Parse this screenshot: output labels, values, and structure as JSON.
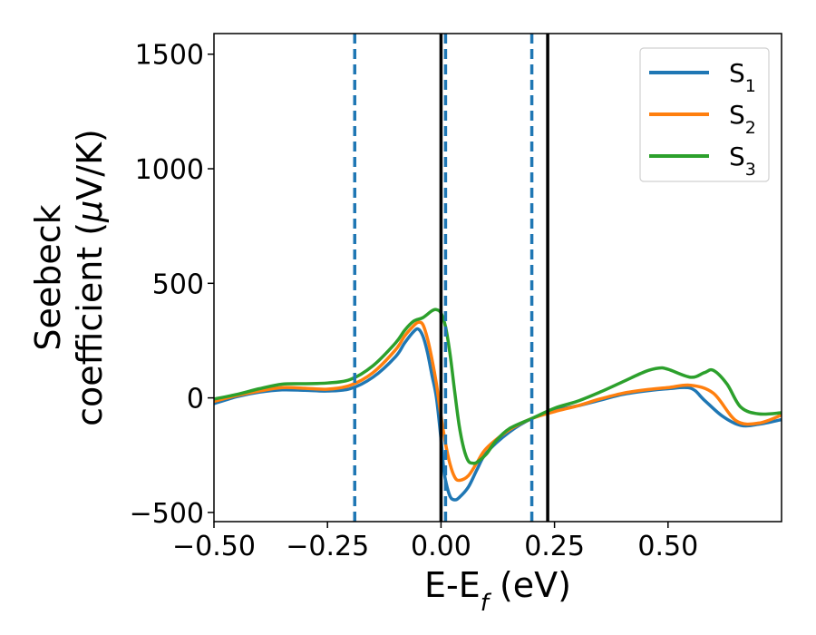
{
  "chart_data": {
    "type": "line",
    "xlabel": "E-E",
    "xlabel_sub": "f",
    "xlabel_unit": " (eV)",
    "ylabel_line1": "Seebeck",
    "ylabel_line2": "coefficient  (",
    "ylabel_mu": "μ",
    "ylabel_unit": "V/K)",
    "xlim": [
      -0.5,
      0.75
    ],
    "ylim": [
      -540,
      1590
    ],
    "xticks": [
      -0.5,
      -0.25,
      0.0,
      0.25,
      0.5
    ],
    "xtick_labels": [
      "−0.50",
      "−0.25",
      "0.00",
      "0.25",
      "0.50"
    ],
    "yticks": [
      -500,
      0,
      500,
      1000,
      1500
    ],
    "ytick_labels": [
      "−500",
      "0",
      "500",
      "1000",
      "1500"
    ],
    "legend_position": "top-right",
    "grid": false,
    "colors": {
      "s1": "#1f77b4",
      "s2": "#ff7f0e",
      "s3": "#2ca02c",
      "solid_vline": "#000000",
      "dashed_vline": "#1f77b4"
    },
    "vlines_solid": [
      0.0,
      0.235
    ],
    "vlines_dashed": [
      -0.19,
      0.01,
      0.2
    ],
    "series": [
      {
        "name": "S",
        "sub": "1",
        "color": "#1f77b4",
        "x": [
          -0.5,
          -0.45,
          -0.4,
          -0.35,
          -0.3,
          -0.25,
          -0.2,
          -0.15,
          -0.1,
          -0.08,
          -0.06,
          -0.05,
          -0.04,
          -0.03,
          -0.02,
          -0.01,
          0.0,
          0.005,
          0.01,
          0.02,
          0.03,
          0.04,
          0.06,
          0.08,
          0.1,
          0.15,
          0.2,
          0.25,
          0.3,
          0.35,
          0.4,
          0.45,
          0.5,
          0.55,
          0.58,
          0.62,
          0.66,
          0.7,
          0.75
        ],
        "y": [
          -25,
          5,
          25,
          35,
          33,
          30,
          40,
          90,
          180,
          240,
          290,
          300,
          270,
          200,
          100,
          0,
          -180,
          -290,
          -360,
          -430,
          -445,
          -435,
          -390,
          -310,
          -240,
          -150,
          -90,
          -55,
          -35,
          -10,
          15,
          30,
          40,
          42,
          -10,
          -80,
          -120,
          -115,
          -95
        ]
      },
      {
        "name": "S",
        "sub": "2",
        "color": "#ff7f0e",
        "x": [
          -0.5,
          -0.45,
          -0.4,
          -0.35,
          -0.3,
          -0.25,
          -0.2,
          -0.15,
          -0.1,
          -0.08,
          -0.06,
          -0.05,
          -0.04,
          -0.03,
          -0.02,
          -0.01,
          0.0,
          0.01,
          0.02,
          0.03,
          0.04,
          0.06,
          0.08,
          0.1,
          0.15,
          0.2,
          0.25,
          0.3,
          0.35,
          0.4,
          0.45,
          0.5,
          0.55,
          0.6,
          0.65,
          0.7,
          0.75
        ],
        "y": [
          -15,
          10,
          30,
          45,
          42,
          38,
          55,
          110,
          210,
          270,
          315,
          330,
          320,
          260,
          170,
          60,
          -80,
          -200,
          -290,
          -345,
          -360,
          -340,
          -280,
          -220,
          -140,
          -90,
          -60,
          -35,
          -5,
          20,
          35,
          45,
          55,
          20,
          -100,
          -110,
          -75
        ]
      },
      {
        "name": "S",
        "sub": "3",
        "color": "#2ca02c",
        "x": [
          -0.5,
          -0.45,
          -0.4,
          -0.35,
          -0.3,
          -0.25,
          -0.2,
          -0.15,
          -0.1,
          -0.08,
          -0.06,
          -0.04,
          -0.02,
          -0.01,
          0.0,
          0.01,
          0.02,
          0.03,
          0.04,
          0.05,
          0.06,
          0.07,
          0.08,
          0.1,
          0.12,
          0.15,
          0.2,
          0.25,
          0.3,
          0.35,
          0.4,
          0.45,
          0.48,
          0.5,
          0.55,
          0.58,
          0.6,
          0.63,
          0.66,
          0.7,
          0.75
        ],
        "y": [
          -5,
          15,
          40,
          60,
          62,
          65,
          80,
          140,
          240,
          295,
          335,
          350,
          380,
          385,
          370,
          310,
          190,
          30,
          -120,
          -220,
          -275,
          -285,
          -280,
          -245,
          -190,
          -135,
          -90,
          -45,
          -15,
          25,
          70,
          115,
          130,
          125,
          90,
          110,
          120,
          60,
          -40,
          -70,
          -65
        ]
      }
    ]
  }
}
